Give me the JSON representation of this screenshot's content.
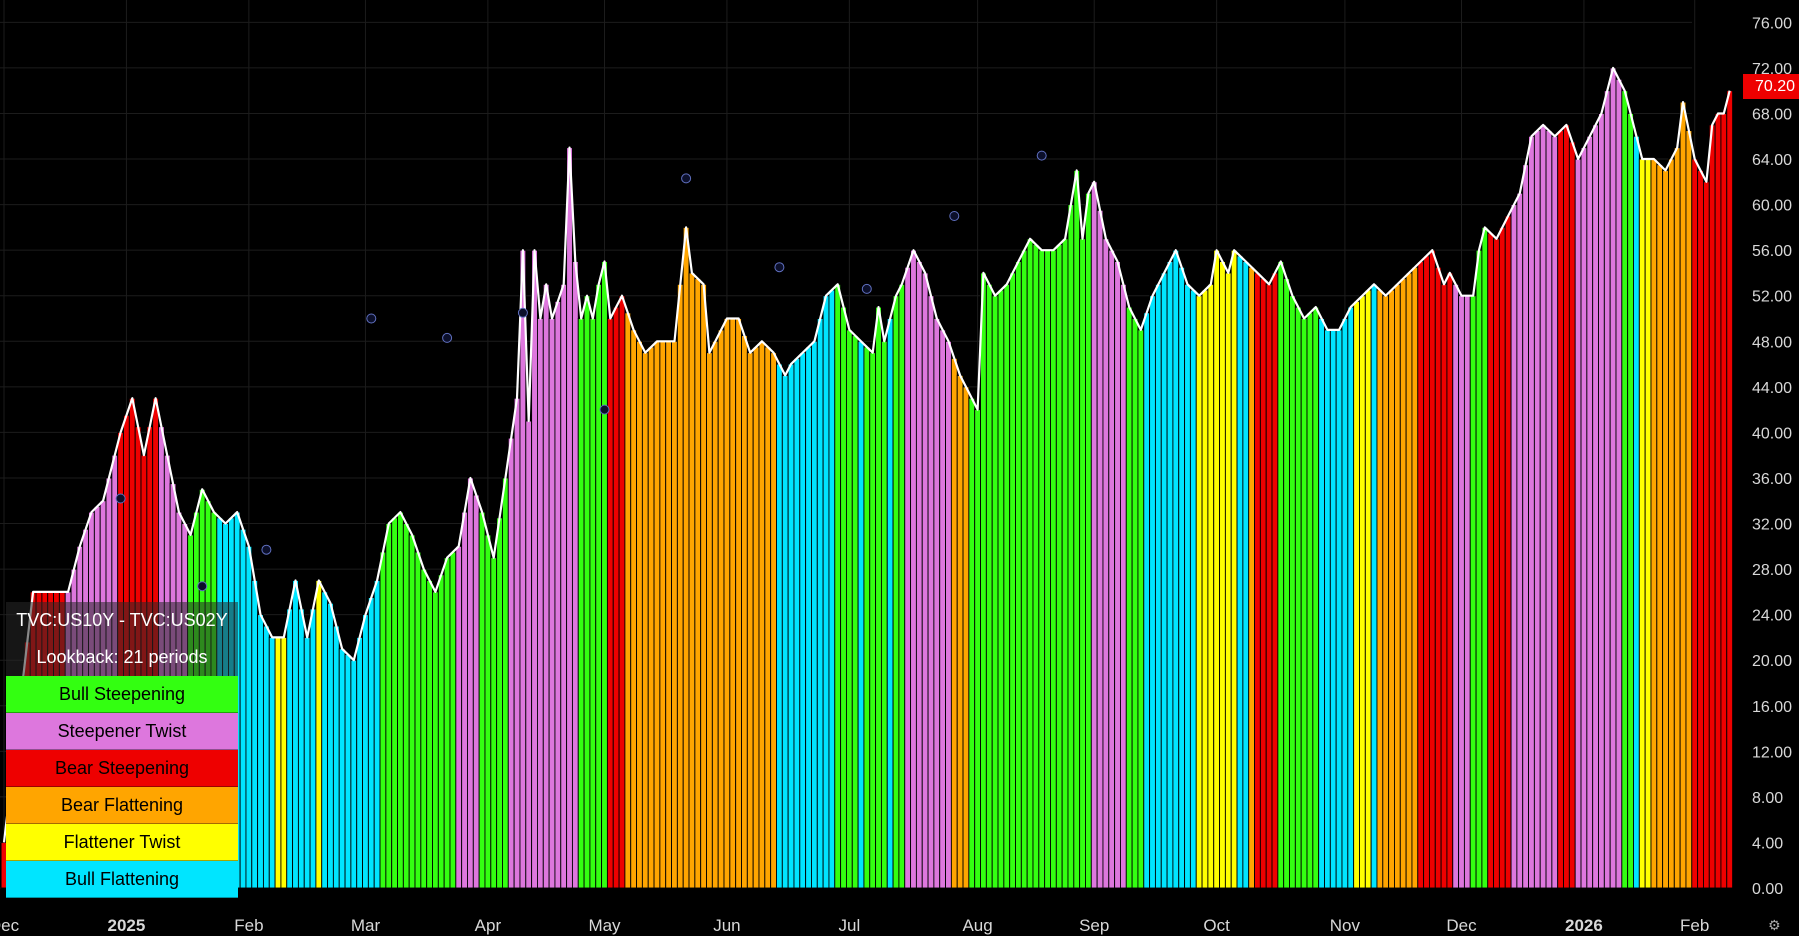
{
  "chart_data": {
    "type": "bar",
    "y_axis": {
      "ticks": [
        "76.00",
        "72.00",
        "68.00",
        "64.00",
        "60.00",
        "56.00",
        "52.00",
        "48.00",
        "44.00",
        "40.00",
        "36.00",
        "32.00",
        "28.00",
        "24.00",
        "20.00",
        "16.00",
        "12.00",
        "8.00",
        "4.00",
        "0.00"
      ],
      "ylim": [
        0,
        78
      ],
      "position": "right"
    },
    "x_axis": {
      "labels": [
        {
          "label": "Dec",
          "i": 0
        },
        {
          "label": "2025",
          "i": 21
        },
        {
          "label": "Feb",
          "i": 42
        },
        {
          "label": "Mar",
          "i": 62
        },
        {
          "label": "Apr",
          "i": 83
        },
        {
          "label": "May",
          "i": 103
        },
        {
          "label": "Jun",
          "i": 124
        },
        {
          "label": "Jul",
          "i": 145
        },
        {
          "label": "Aug",
          "i": 167
        },
        {
          "label": "Sep",
          "i": 187
        },
        {
          "label": "Oct",
          "i": 208
        },
        {
          "label": "Nov",
          "i": 230
        },
        {
          "label": "Dec",
          "i": 250
        },
        {
          "label": "2026",
          "i": 271
        },
        {
          "label": "Feb",
          "i": 290
        }
      ]
    },
    "legend_entries": [
      {
        "key": "bull_steep",
        "label": "Bull Steepening",
        "color": "#33FF11"
      },
      {
        "key": "steep_twist",
        "label": "Steepener Twist",
        "color": "#DD77DD"
      },
      {
        "key": "bear_steep",
        "label": "Bear Steepening",
        "color": "#EE0000"
      },
      {
        "key": "bear_flat",
        "label": "Bear Flattening",
        "color": "#FFA500"
      },
      {
        "key": "flat_twist",
        "label": "Flattener Twist",
        "color": "#FFFF00"
      },
      {
        "key": "bull_flat",
        "label": "Bull Flattening",
        "color": "#00E5FF"
      }
    ],
    "segments": [
      {
        "regime": "bear_steep",
        "start": 0,
        "end": 11
      },
      {
        "regime": "steep_twist",
        "start": 11,
        "end": 20
      },
      {
        "regime": "bear_steep",
        "start": 20,
        "end": 27
      },
      {
        "regime": "steep_twist",
        "start": 27,
        "end": 32
      },
      {
        "regime": "bull_steep",
        "start": 32,
        "end": 37
      },
      {
        "regime": "bull_flat",
        "start": 37,
        "end": 47
      },
      {
        "regime": "flat_twist",
        "start": 47,
        "end": 49
      },
      {
        "regime": "bull_flat",
        "start": 49,
        "end": 54
      },
      {
        "regime": "flat_twist",
        "start": 54,
        "end": 55
      },
      {
        "regime": "bull_flat",
        "start": 55,
        "end": 65
      },
      {
        "regime": "bull_steep",
        "start": 65,
        "end": 78
      },
      {
        "regime": "steep_twist",
        "start": 78,
        "end": 82
      },
      {
        "regime": "bull_steep",
        "start": 82,
        "end": 87
      },
      {
        "regime": "steep_twist",
        "start": 87,
        "end": 99
      },
      {
        "regime": "bull_steep",
        "start": 99,
        "end": 104
      },
      {
        "regime": "bear_steep",
        "start": 104,
        "end": 107
      },
      {
        "regime": "bear_flat",
        "start": 107,
        "end": 133
      },
      {
        "regime": "bull_flat",
        "start": 133,
        "end": 143
      },
      {
        "regime": "bull_steep",
        "start": 143,
        "end": 147
      },
      {
        "regime": "bull_flat",
        "start": 147,
        "end": 148
      },
      {
        "regime": "bull_steep",
        "start": 148,
        "end": 152
      },
      {
        "regime": "bull_flat",
        "start": 152,
        "end": 153
      },
      {
        "regime": "bull_steep",
        "start": 153,
        "end": 155
      },
      {
        "regime": "steep_twist",
        "start": 155,
        "end": 163
      },
      {
        "regime": "bear_flat",
        "start": 163,
        "end": 166
      },
      {
        "regime": "bull_steep",
        "start": 166,
        "end": 187
      },
      {
        "regime": "steep_twist",
        "start": 187,
        "end": 193
      },
      {
        "regime": "bull_steep",
        "start": 193,
        "end": 196
      },
      {
        "regime": "bull_flat",
        "start": 196,
        "end": 205
      },
      {
        "regime": "flat_twist",
        "start": 205,
        "end": 212
      },
      {
        "regime": "bull_flat",
        "start": 212,
        "end": 214
      },
      {
        "regime": "bear_flat",
        "start": 214,
        "end": 215
      },
      {
        "regime": "bear_steep",
        "start": 215,
        "end": 219
      },
      {
        "regime": "bull_steep",
        "start": 219,
        "end": 226
      },
      {
        "regime": "bull_flat",
        "start": 226,
        "end": 232
      },
      {
        "regime": "flat_twist",
        "start": 232,
        "end": 235
      },
      {
        "regime": "bull_flat",
        "start": 235,
        "end": 236
      },
      {
        "regime": "bear_flat",
        "start": 236,
        "end": 243
      },
      {
        "regime": "bear_steep",
        "start": 243,
        "end": 249
      },
      {
        "regime": "steep_twist",
        "start": 249,
        "end": 252
      },
      {
        "regime": "bull_steep",
        "start": 252,
        "end": 255
      },
      {
        "regime": "bear_steep",
        "start": 255,
        "end": 259
      },
      {
        "regime": "steep_twist",
        "start": 259,
        "end": 267
      },
      {
        "regime": "bear_steep",
        "start": 267,
        "end": 270
      },
      {
        "regime": "steep_twist",
        "start": 270,
        "end": 278
      },
      {
        "regime": "bull_steep",
        "start": 278,
        "end": 280
      },
      {
        "regime": "bull_flat",
        "start": 280,
        "end": 281
      },
      {
        "regime": "flat_twist",
        "start": 281,
        "end": 283
      },
      {
        "regime": "bear_flat",
        "start": 283,
        "end": 290
      },
      {
        "regime": "bear_steep",
        "start": 290,
        "end": 292
      }
    ],
    "points": [
      [
        0,
        4
      ],
      [
        5,
        26
      ],
      [
        9,
        26
      ],
      [
        11,
        26
      ],
      [
        13,
        30
      ],
      [
        15,
        33
      ],
      [
        17,
        34
      ],
      [
        20,
        40
      ],
      [
        22,
        43
      ],
      [
        24,
        38
      ],
      [
        26,
        43
      ],
      [
        28,
        38
      ],
      [
        30,
        33
      ],
      [
        32,
        31
      ],
      [
        34,
        35
      ],
      [
        36,
        33
      ],
      [
        38,
        32
      ],
      [
        40,
        33
      ],
      [
        42,
        30
      ],
      [
        44,
        24
      ],
      [
        46,
        22
      ],
      [
        48,
        22
      ],
      [
        50,
        27
      ],
      [
        52,
        22
      ],
      [
        54,
        27
      ],
      [
        56,
        25
      ],
      [
        58,
        21
      ],
      [
        60,
        20
      ],
      [
        62,
        24
      ],
      [
        64,
        27
      ],
      [
        66,
        32
      ],
      [
        68,
        33
      ],
      [
        70,
        31
      ],
      [
        72,
        28
      ],
      [
        74,
        26
      ],
      [
        76,
        29
      ],
      [
        78,
        30
      ],
      [
        80,
        36
      ],
      [
        82,
        33
      ],
      [
        84,
        29
      ],
      [
        86,
        36
      ],
      [
        88,
        43
      ],
      [
        89,
        56
      ],
      [
        90,
        41
      ],
      [
        91,
        56
      ],
      [
        92,
        50
      ],
      [
        93,
        53
      ],
      [
        94,
        50
      ],
      [
        96,
        53
      ],
      [
        97,
        65
      ],
      [
        98,
        55
      ],
      [
        99,
        50
      ],
      [
        100,
        52
      ],
      [
        101,
        50
      ],
      [
        102,
        53
      ],
      [
        103,
        55
      ],
      [
        104,
        50
      ],
      [
        105,
        51
      ],
      [
        106,
        52
      ],
      [
        108,
        49
      ],
      [
        110,
        47
      ],
      [
        112,
        48
      ],
      [
        114,
        48
      ],
      [
        115,
        48
      ],
      [
        117,
        58
      ],
      [
        118,
        54
      ],
      [
        120,
        53
      ],
      [
        121,
        47
      ],
      [
        122,
        48
      ],
      [
        124,
        50
      ],
      [
        126,
        50
      ],
      [
        128,
        47
      ],
      [
        130,
        48
      ],
      [
        132,
        47
      ],
      [
        133,
        46
      ],
      [
        134,
        45
      ],
      [
        135,
        46
      ],
      [
        137,
        47
      ],
      [
        139,
        48
      ],
      [
        141,
        52
      ],
      [
        143,
        53
      ],
      [
        145,
        49
      ],
      [
        147,
        48
      ],
      [
        149,
        47
      ],
      [
        150,
        51
      ],
      [
        151,
        48
      ],
      [
        153,
        52
      ],
      [
        154,
        53
      ],
      [
        156,
        56
      ],
      [
        158,
        54
      ],
      [
        160,
        50
      ],
      [
        162,
        48
      ],
      [
        164,
        45
      ],
      [
        166,
        43
      ],
      [
        167,
        42
      ],
      [
        168,
        54
      ],
      [
        170,
        52
      ],
      [
        172,
        53
      ],
      [
        174,
        55
      ],
      [
        176,
        57
      ],
      [
        178,
        56
      ],
      [
        180,
        56
      ],
      [
        182,
        57
      ],
      [
        184,
        63
      ],
      [
        185,
        57
      ],
      [
        186,
        61
      ],
      [
        187,
        62
      ],
      [
        189,
        57
      ],
      [
        191,
        55
      ],
      [
        193,
        51
      ],
      [
        195,
        49
      ],
      [
        197,
        52
      ],
      [
        199,
        54
      ],
      [
        201,
        56
      ],
      [
        203,
        53
      ],
      [
        205,
        52
      ],
      [
        207,
        53
      ],
      [
        208,
        56
      ],
      [
        210,
        54
      ],
      [
        211,
        56
      ],
      [
        213,
        55
      ],
      [
        215,
        54
      ],
      [
        217,
        53
      ],
      [
        219,
        55
      ],
      [
        221,
        52
      ],
      [
        223,
        50
      ],
      [
        225,
        51
      ],
      [
        227,
        49
      ],
      [
        229,
        49
      ],
      [
        231,
        51
      ],
      [
        233,
        52
      ],
      [
        235,
        53
      ],
      [
        237,
        52
      ],
      [
        239,
        53
      ],
      [
        241,
        54
      ],
      [
        243,
        55
      ],
      [
        245,
        56
      ],
      [
        247,
        53
      ],
      [
        248,
        54
      ],
      [
        250,
        52
      ],
      [
        252,
        52
      ],
      [
        253,
        56
      ],
      [
        254,
        58
      ],
      [
        256,
        57
      ],
      [
        258,
        59
      ],
      [
        260,
        61
      ],
      [
        262,
        66
      ],
      [
        264,
        67
      ],
      [
        266,
        66
      ],
      [
        268,
        67
      ],
      [
        270,
        64
      ],
      [
        272,
        66
      ],
      [
        274,
        68
      ],
      [
        276,
        72
      ],
      [
        278,
        70
      ],
      [
        279,
        68
      ],
      [
        281,
        64
      ],
      [
        283,
        64
      ],
      [
        285,
        63
      ],
      [
        287,
        65
      ],
      [
        288,
        69
      ],
      [
        290,
        64
      ],
      [
        291,
        63
      ],
      [
        292,
        62
      ],
      [
        293,
        67
      ],
      [
        294,
        68
      ],
      [
        295,
        68
      ],
      [
        296,
        70
      ]
    ],
    "markers": [
      [
        20,
        34.2
      ],
      [
        34,
        26.5
      ],
      [
        45,
        29.7
      ],
      [
        63,
        50
      ],
      [
        76,
        48.3
      ],
      [
        89,
        50.5
      ],
      [
        103,
        42
      ],
      [
        117,
        62.3
      ],
      [
        133,
        54.5
      ],
      [
        148,
        52.6
      ],
      [
        163,
        59
      ],
      [
        178,
        64.3
      ]
    ],
    "last_value": "70.20",
    "legend_header": [
      "TVC:US10Y - TVC:US02Y",
      "Lookback: 21 periods"
    ]
  }
}
